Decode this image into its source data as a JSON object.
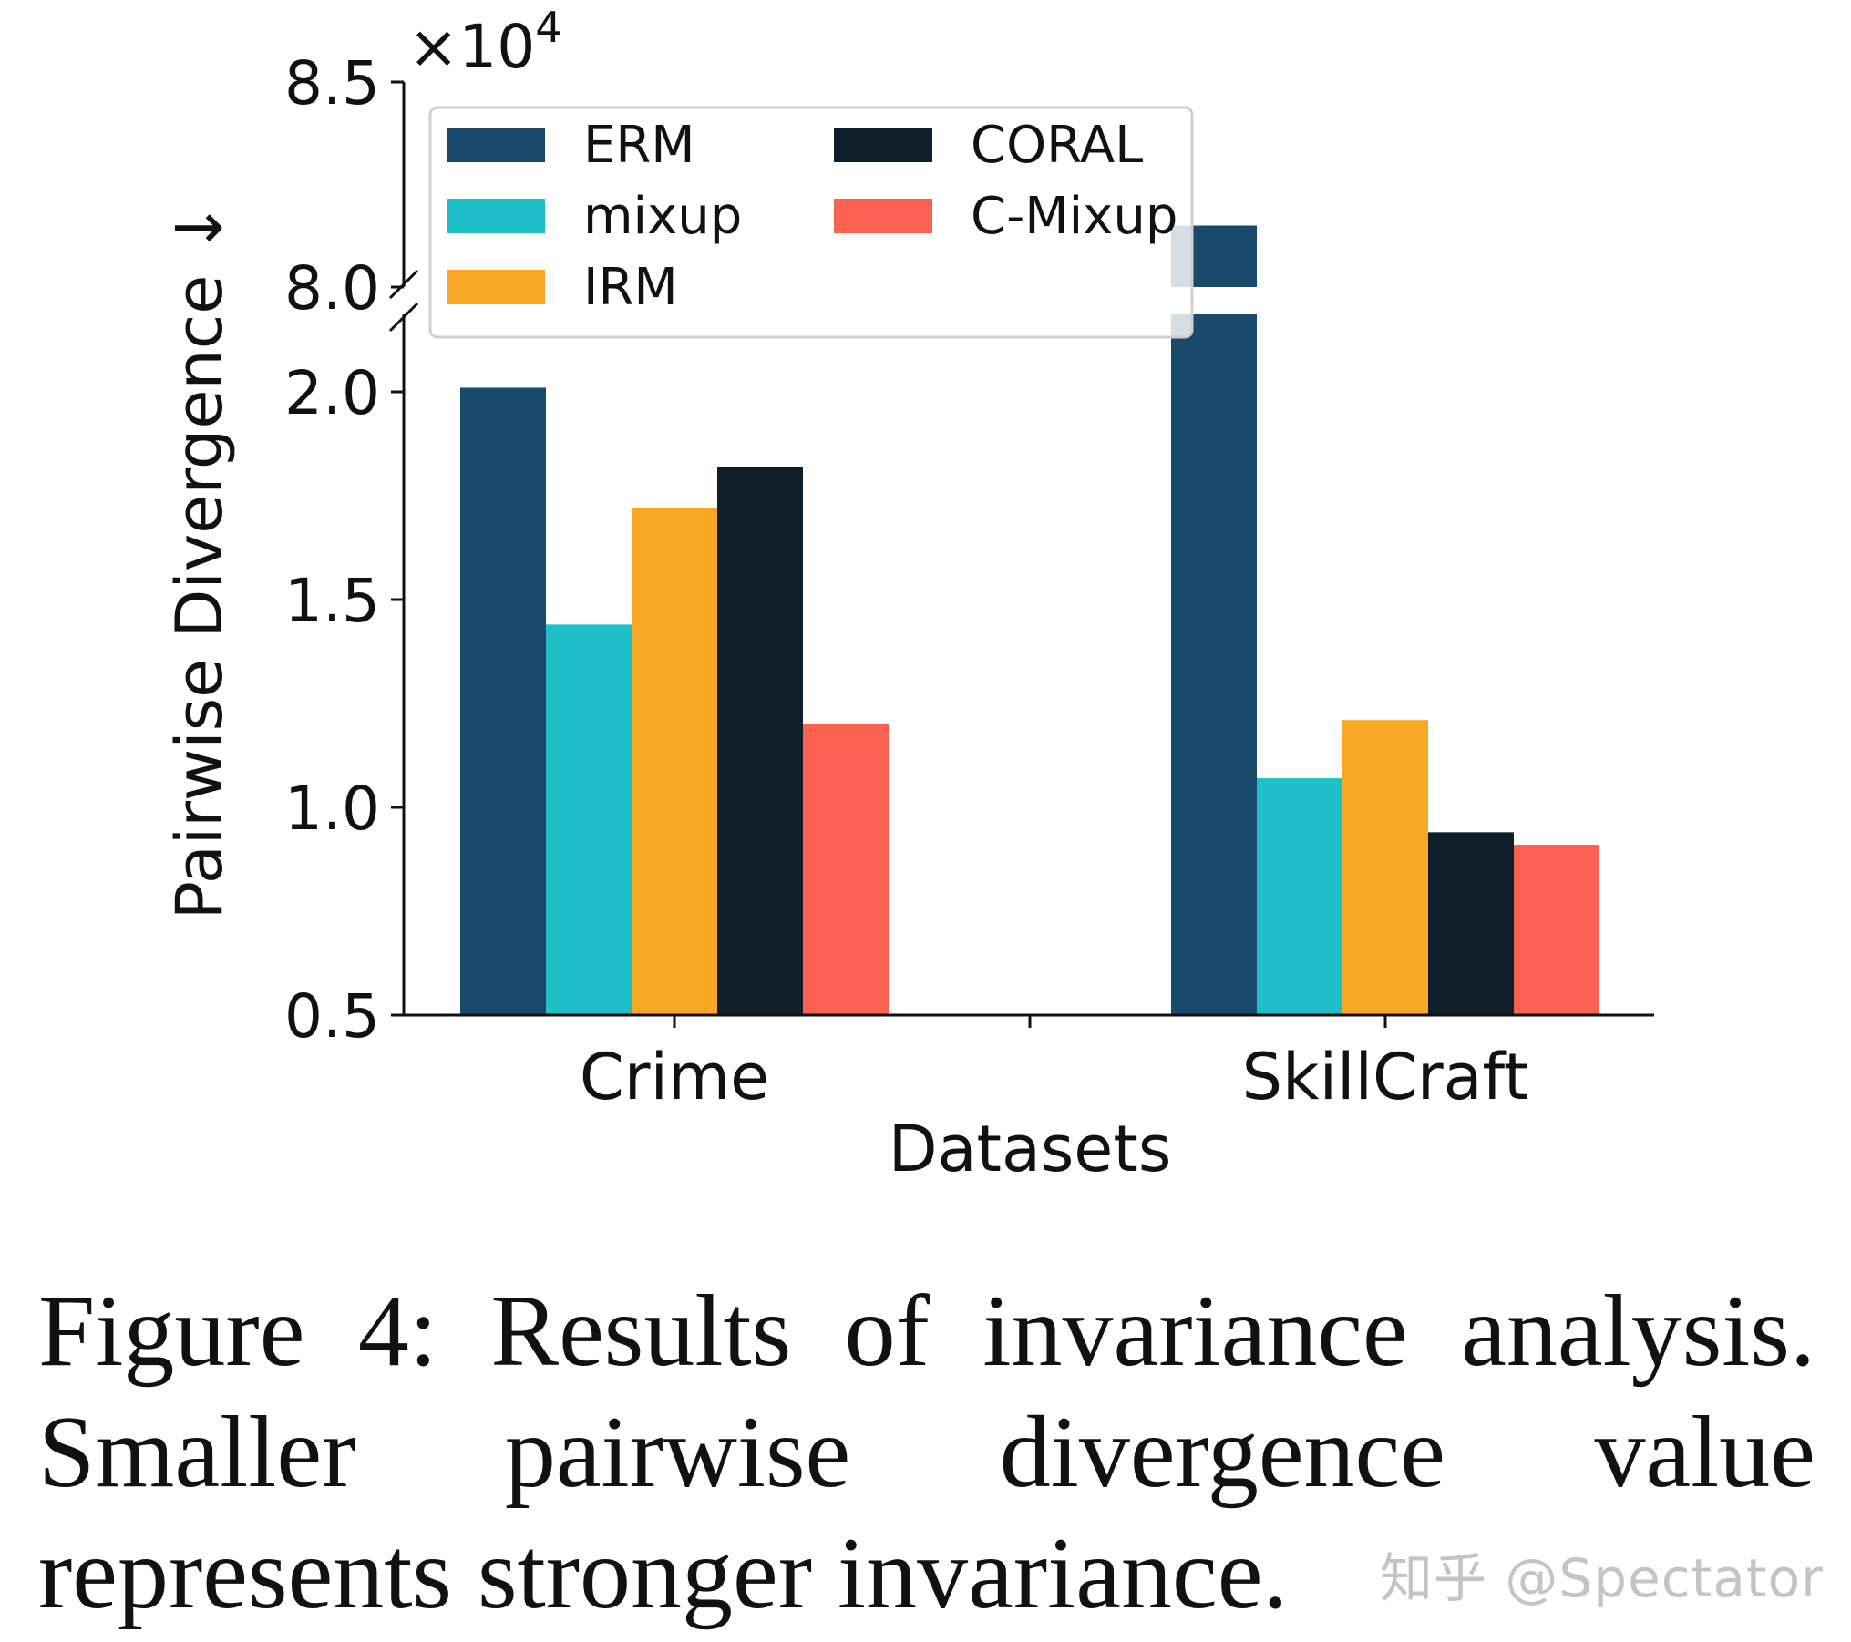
{
  "chart_data": {
    "type": "bar",
    "xlabel": "Datasets",
    "ylabel": "Pairwise Divergence ↓",
    "y_multiplier": "×10",
    "y_multiplier_exp": "4",
    "y_scale_factor": 10000,
    "axis_break": true,
    "ylim_lower": [
      0.5,
      2.2
    ],
    "ylim_upper": [
      8.0,
      8.5
    ],
    "yticks_lower": [
      "0.5",
      "1.0",
      "1.5",
      "2.0"
    ],
    "yticks_upper": [
      "8.0",
      "8.5"
    ],
    "categories": [
      "Crime",
      "SkillCraft"
    ],
    "series": [
      {
        "name": "ERM",
        "color": "#1a4a6b",
        "values": [
          2.01,
          8.15
        ]
      },
      {
        "name": "mixup",
        "color": "#1fbfc7",
        "values": [
          1.44,
          1.07
        ]
      },
      {
        "name": "IRM",
        "color": "#f9a825",
        "values": [
          1.72,
          1.21
        ]
      },
      {
        "name": "CORAL",
        "color": "#0f1e2b",
        "values": [
          1.82,
          0.94
        ]
      },
      {
        "name": "C-Mixup",
        "color": "#fb6151",
        "values": [
          1.2,
          0.91
        ]
      }
    ],
    "legend_position": "top-center",
    "grid": false
  },
  "caption": "Figure 4: Results of invariance analysis. Smaller pairwise divergence value represents stronger invariance.",
  "watermark": "知乎 @Spectator"
}
